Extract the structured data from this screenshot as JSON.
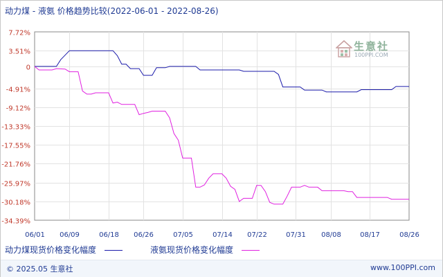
{
  "chart_data": {
    "type": "line",
    "title": "动力煤 - 液氨 价格趋势比较(2022-06-01 - 2022-08-26)",
    "y_ticks": [
      7.72,
      3.51,
      0,
      -4.91,
      -9.12,
      -13.33,
      -17.55,
      -21.76,
      -25.97,
      -30.18,
      -34.39
    ],
    "y_tick_labels": [
      "7.72%",
      "3.51%",
      "0",
      "-4.91%",
      "-9.12%",
      "-13.33%",
      "-17.55%",
      "-21.76%",
      "-25.97%",
      "-30.18%",
      "-34.39%"
    ],
    "ylim": [
      -34.39,
      7.72
    ],
    "x_range": [
      "2022-06-01",
      "2022-08-26"
    ],
    "x_tick_labels": [
      "06/01",
      "06/09",
      "06/18",
      "06/26",
      "07/05",
      "07/14",
      "07/22",
      "07/31",
      "08/08",
      "08/17",
      "08/26"
    ],
    "x_tick_dates": [
      "2022-06-01",
      "2022-06-09",
      "2022-06-18",
      "2022-06-26",
      "2022-07-05",
      "2022-07-14",
      "2022-07-22",
      "2022-07-31",
      "2022-08-08",
      "2022-08-17",
      "2022-08-26"
    ],
    "grid": true,
    "series": [
      {
        "name": "动力煤现货价格变化幅度",
        "color": "#1a1aaa",
        "points": [
          [
            "2022-06-01",
            0
          ],
          [
            "2022-06-06",
            0
          ],
          [
            "2022-06-07",
            1.5
          ],
          [
            "2022-06-08",
            2.5
          ],
          [
            "2022-06-09",
            3.51
          ],
          [
            "2022-06-19",
            3.51
          ],
          [
            "2022-06-20",
            2.4
          ],
          [
            "2022-06-21",
            0.5
          ],
          [
            "2022-06-22",
            0.5
          ],
          [
            "2022-06-23",
            -0.5
          ],
          [
            "2022-06-25",
            -0.5
          ],
          [
            "2022-06-26",
            -2.0
          ],
          [
            "2022-06-28",
            -2.0
          ],
          [
            "2022-06-29",
            -0.3
          ],
          [
            "2022-07-01",
            -0.3
          ],
          [
            "2022-07-02",
            0
          ],
          [
            "2022-07-08",
            0
          ],
          [
            "2022-07-09",
            -0.8
          ],
          [
            "2022-07-18",
            -0.8
          ],
          [
            "2022-07-19",
            -1.1
          ],
          [
            "2022-07-26",
            -1.1
          ],
          [
            "2022-07-27",
            -1.8
          ],
          [
            "2022-07-28",
            -4.6
          ],
          [
            "2022-08-01",
            -4.6
          ],
          [
            "2022-08-02",
            -5.3
          ],
          [
            "2022-08-06",
            -5.3
          ],
          [
            "2022-08-07",
            -5.7
          ],
          [
            "2022-08-14",
            -5.7
          ],
          [
            "2022-08-15",
            -5.2
          ],
          [
            "2022-08-22",
            -5.2
          ],
          [
            "2022-08-23",
            -4.5
          ],
          [
            "2022-08-26",
            -4.5
          ]
        ]
      },
      {
        "name": "液氨现货价格变化幅度",
        "color": "#e020e0",
        "points": [
          [
            "2022-06-01",
            0
          ],
          [
            "2022-06-02",
            -0.8
          ],
          [
            "2022-06-05",
            -0.8
          ],
          [
            "2022-06-06",
            -0.5
          ],
          [
            "2022-06-08",
            -0.6
          ],
          [
            "2022-06-09",
            -1.2
          ],
          [
            "2022-06-11",
            -1.2
          ],
          [
            "2022-06-12",
            -5.5
          ],
          [
            "2022-06-13",
            -6.2
          ],
          [
            "2022-06-14",
            -6.2
          ],
          [
            "2022-06-15",
            -5.9
          ],
          [
            "2022-06-18",
            -5.9
          ],
          [
            "2022-06-19",
            -8.2
          ],
          [
            "2022-06-20",
            -8.0
          ],
          [
            "2022-06-21",
            -8.5
          ],
          [
            "2022-06-24",
            -8.5
          ],
          [
            "2022-06-25",
            -10.8
          ],
          [
            "2022-06-26",
            -10.5
          ],
          [
            "2022-06-27",
            -10.3
          ],
          [
            "2022-06-28",
            -10.0
          ],
          [
            "2022-07-01",
            -10.0
          ],
          [
            "2022-07-02",
            -11.5
          ],
          [
            "2022-07-03",
            -15.0
          ],
          [
            "2022-07-04",
            -16.5
          ],
          [
            "2022-07-05",
            -20.5
          ],
          [
            "2022-07-07",
            -20.5
          ],
          [
            "2022-07-08",
            -27.0
          ],
          [
            "2022-07-09",
            -27.0
          ],
          [
            "2022-07-10",
            -26.5
          ],
          [
            "2022-07-11",
            -25.0
          ],
          [
            "2022-07-12",
            -24.0
          ],
          [
            "2022-07-14",
            -24.0
          ],
          [
            "2022-07-15",
            -25.0
          ],
          [
            "2022-07-16",
            -26.8
          ],
          [
            "2022-07-17",
            -27.5
          ],
          [
            "2022-07-18",
            -30.2
          ],
          [
            "2022-07-19",
            -29.5
          ],
          [
            "2022-07-21",
            -29.5
          ],
          [
            "2022-07-22",
            -26.6
          ],
          [
            "2022-07-23",
            -26.6
          ],
          [
            "2022-07-24",
            -28.0
          ],
          [
            "2022-07-25",
            -30.4
          ],
          [
            "2022-07-26",
            -30.8
          ],
          [
            "2022-07-28",
            -30.8
          ],
          [
            "2022-07-29",
            -29.0
          ],
          [
            "2022-07-30",
            -27.0
          ],
          [
            "2022-08-01",
            -27.0
          ],
          [
            "2022-08-02",
            -26.6
          ],
          [
            "2022-08-03",
            -27.0
          ],
          [
            "2022-08-05",
            -27.0
          ],
          [
            "2022-08-06",
            -27.8
          ],
          [
            "2022-08-11",
            -27.8
          ],
          [
            "2022-08-12",
            -28.0
          ],
          [
            "2022-08-13",
            -28.0
          ],
          [
            "2022-08-14",
            -29.3
          ],
          [
            "2022-08-21",
            -29.3
          ],
          [
            "2022-08-22",
            -29.7
          ],
          [
            "2022-08-26",
            -29.7
          ]
        ]
      }
    ]
  },
  "watermark": {
    "cn": "生意社",
    "en": "100PPI.COM"
  },
  "footer": {
    "left": "© 2025.05 生意社",
    "right": "www.100PPI.com"
  }
}
